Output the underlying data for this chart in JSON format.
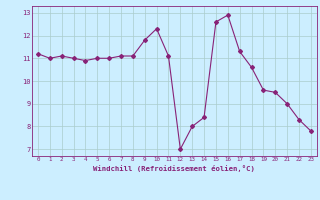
{
  "x": [
    0,
    1,
    2,
    3,
    4,
    5,
    6,
    7,
    8,
    9,
    10,
    11,
    12,
    13,
    14,
    15,
    16,
    17,
    18,
    19,
    20,
    21,
    22,
    23
  ],
  "y": [
    11.2,
    11.0,
    11.1,
    11.0,
    10.9,
    11.0,
    11.0,
    11.1,
    11.1,
    11.8,
    12.3,
    11.1,
    7.0,
    8.0,
    8.4,
    12.6,
    12.9,
    11.3,
    10.6,
    9.6,
    9.5,
    9.0,
    8.3,
    7.8
  ],
  "line_color": "#882277",
  "marker": "D",
  "marker_size": 2,
  "bg_color": "#cceeff",
  "grid_color": "#aacccc",
  "xlabel": "Windchill (Refroidissement éolien,°C)",
  "xlabel_color": "#882277",
  "tick_color": "#882277",
  "ylabel_ticks": [
    7,
    8,
    9,
    10,
    11,
    12,
    13
  ],
  "xlim": [
    -0.5,
    23.5
  ],
  "ylim": [
    6.7,
    13.3
  ]
}
